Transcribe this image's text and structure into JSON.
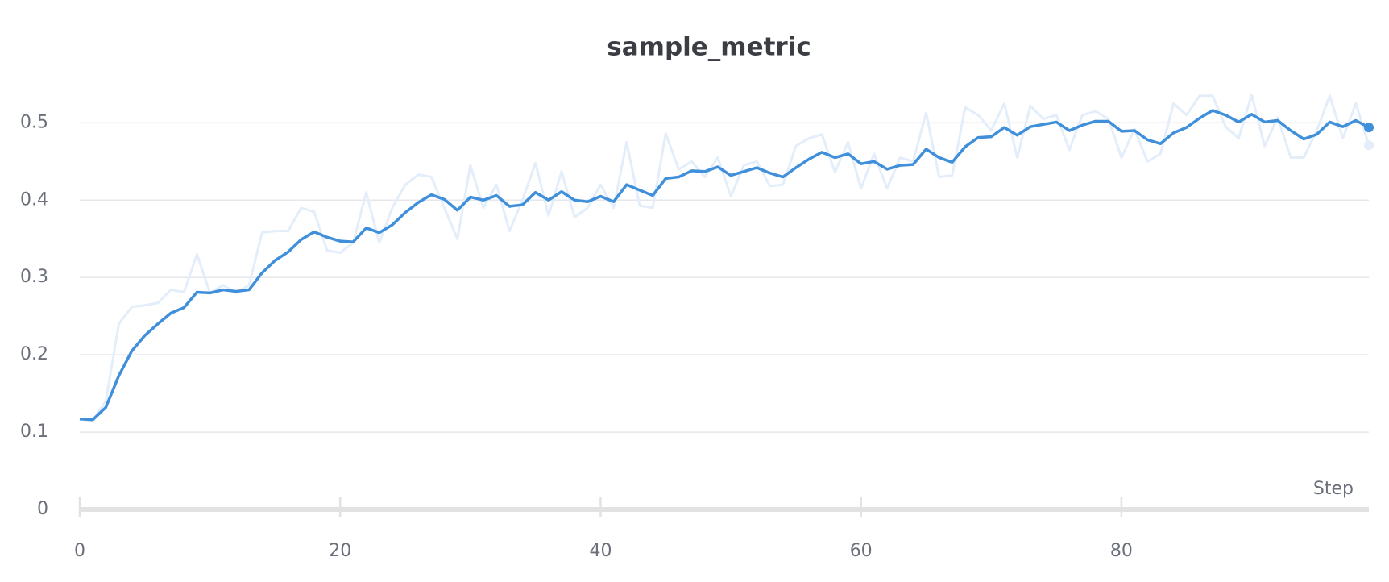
{
  "chart_data": {
    "type": "line",
    "title": "sample_metric",
    "x_label": "Step",
    "x": [
      0,
      1,
      2,
      3,
      4,
      5,
      6,
      7,
      8,
      9,
      10,
      11,
      12,
      13,
      14,
      15,
      16,
      17,
      18,
      19,
      20,
      21,
      22,
      23,
      24,
      25,
      26,
      27,
      28,
      29,
      30,
      31,
      32,
      33,
      34,
      35,
      36,
      37,
      38,
      39,
      40,
      41,
      42,
      43,
      44,
      45,
      46,
      47,
      48,
      49,
      50,
      51,
      52,
      53,
      54,
      55,
      56,
      57,
      58,
      59,
      60,
      61,
      62,
      63,
      64,
      65,
      66,
      67,
      68,
      69,
      70,
      71,
      72,
      73,
      74,
      75,
      76,
      77,
      78,
      79,
      80,
      81,
      82,
      83,
      84,
      85,
      86,
      87,
      88,
      89,
      90,
      91,
      92,
      93,
      94,
      95,
      96,
      97,
      98,
      99
    ],
    "series": [
      {
        "color": "#e3eefa",
        "values": [
          0.117,
          0.115,
          0.14,
          0.24,
          0.262,
          0.264,
          0.267,
          0.284,
          0.281,
          0.33,
          0.28,
          0.29,
          0.28,
          0.29,
          0.358,
          0.36,
          0.36,
          0.39,
          0.385,
          0.335,
          0.332,
          0.345,
          0.41,
          0.345,
          0.39,
          0.42,
          0.433,
          0.43,
          0.39,
          0.35,
          0.445,
          0.39,
          0.42,
          0.36,
          0.4,
          0.448,
          0.38,
          0.437,
          0.378,
          0.39,
          0.42,
          0.39,
          0.475,
          0.393,
          0.39,
          0.486,
          0.44,
          0.45,
          0.43,
          0.455,
          0.405,
          0.445,
          0.45,
          0.418,
          0.42,
          0.47,
          0.48,
          0.485,
          0.436,
          0.475,
          0.415,
          0.46,
          0.415,
          0.455,
          0.45,
          0.513,
          0.43,
          0.432,
          0.52,
          0.51,
          0.49,
          0.525,
          0.455,
          0.522,
          0.505,
          0.51,
          0.465,
          0.51,
          0.515,
          0.505,
          0.455,
          0.492,
          0.45,
          0.46,
          0.525,
          0.51,
          0.535,
          0.535,
          0.495,
          0.48,
          0.536,
          0.47,
          0.507,
          0.455,
          0.455,
          0.49,
          0.535,
          0.48,
          0.525,
          0.471
        ]
      },
      {
        "color": "#3f8fdb",
        "values": [
          0.117,
          0.116,
          0.132,
          0.173,
          0.205,
          0.225,
          0.24,
          0.254,
          0.261,
          0.281,
          0.28,
          0.284,
          0.282,
          0.284,
          0.306,
          0.322,
          0.333,
          0.349,
          0.359,
          0.352,
          0.347,
          0.346,
          0.364,
          0.358,
          0.368,
          0.384,
          0.397,
          0.407,
          0.401,
          0.387,
          0.404,
          0.4,
          0.406,
          0.392,
          0.394,
          0.41,
          0.4,
          0.411,
          0.4,
          0.398,
          0.405,
          0.398,
          0.42,
          0.413,
          0.406,
          0.428,
          0.43,
          0.438,
          0.437,
          0.443,
          0.432,
          0.437,
          0.442,
          0.435,
          0.43,
          0.442,
          0.453,
          0.462,
          0.455,
          0.46,
          0.447,
          0.45,
          0.44,
          0.445,
          0.446,
          0.466,
          0.455,
          0.449,
          0.469,
          0.481,
          0.482,
          0.494,
          0.484,
          0.495,
          0.498,
          0.501,
          0.49,
          0.497,
          0.502,
          0.502,
          0.489,
          0.49,
          0.478,
          0.473,
          0.487,
          0.494,
          0.506,
          0.516,
          0.51,
          0.501,
          0.511,
          0.501,
          0.503,
          0.49,
          0.479,
          0.485,
          0.501,
          0.495,
          0.503,
          0.494
        ]
      }
    ],
    "xlim": [
      0,
      99
    ],
    "xticks": [
      0,
      20,
      40,
      60,
      80
    ],
    "ylim": [
      0,
      0.54
    ],
    "yticks": [
      0,
      0.1,
      0.2,
      0.3,
      0.4,
      0.5
    ],
    "grid": true
  }
}
